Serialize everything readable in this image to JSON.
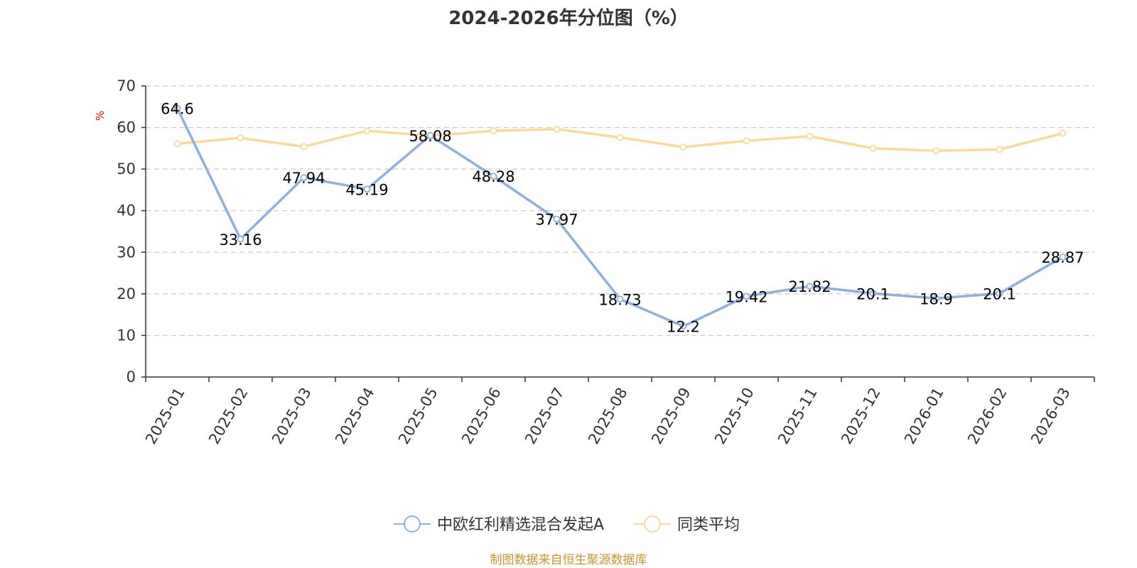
{
  "chart_data": {
    "type": "line",
    "title": "2024-2026年分位图（%）",
    "ylabel": "%",
    "ylim": [
      0,
      70
    ],
    "yticks": [
      0,
      10,
      20,
      30,
      40,
      50,
      60,
      70
    ],
    "grid": true,
    "legend_position": "bottom",
    "categories": [
      "2025-01",
      "2025-02",
      "2025-03",
      "2025-04",
      "2025-05",
      "2025-06",
      "2025-07",
      "2025-08",
      "2025-09",
      "2025-10",
      "2025-11",
      "2025-12",
      "2026-01",
      "2026-02",
      "2026-03"
    ],
    "series": [
      {
        "name": "中欧红利精选混合发起A",
        "color": "#8eb0dc",
        "show_labels": true,
        "values": [
          64.6,
          33.16,
          47.94,
          45.19,
          58.08,
          48.28,
          37.97,
          18.73,
          12.2,
          19.42,
          21.82,
          20.1,
          18.9,
          20.1,
          28.87
        ]
      },
      {
        "name": "同类平均",
        "color": "#fbd99a",
        "show_labels": false,
        "values": [
          56.1,
          57.5,
          55.4,
          59.2,
          58.0,
          59.2,
          59.6,
          57.6,
          55.3,
          56.8,
          57.9,
          55.0,
          54.4,
          54.7,
          58.6
        ]
      }
    ]
  },
  "footer": {
    "source": "制图数据来自恒生聚源数据库",
    "color": "#c8962a"
  },
  "colors": {
    "axis": "#333333",
    "grid": "#cccccc",
    "unit_label": "#ff0000"
  }
}
